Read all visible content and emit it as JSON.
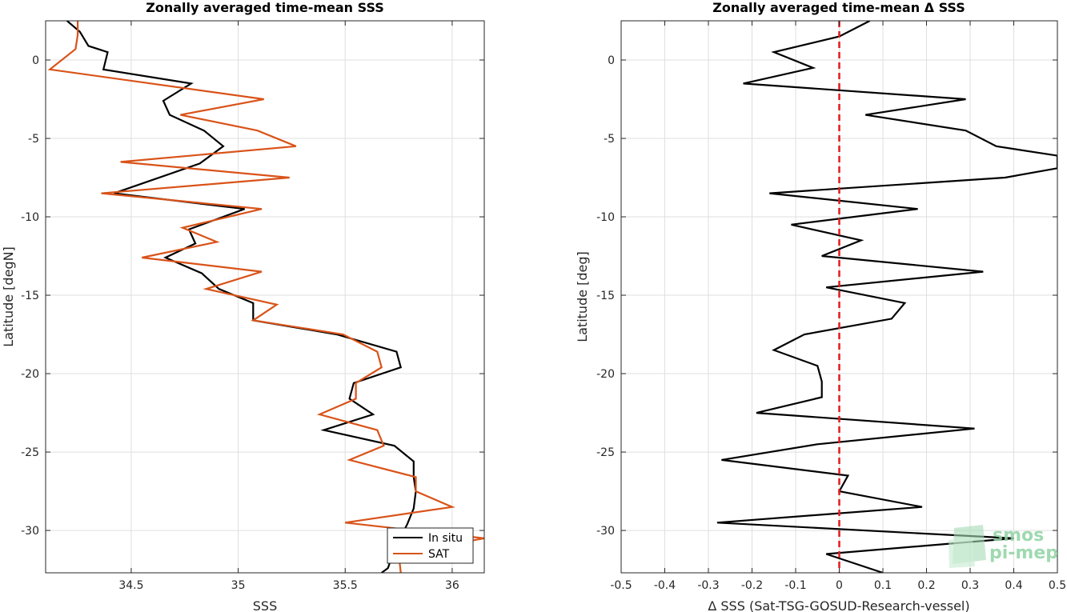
{
  "chart_data": [
    {
      "type": "line",
      "title": "Zonally averaged time-mean SSS",
      "xlabel": "SSS",
      "ylabel": "Latitude [degN]",
      "xlim": [
        34.1,
        36.15
      ],
      "ylim": [
        -32.7,
        2.5
      ],
      "xticks": [
        34.5,
        35,
        35.5,
        36
      ],
      "xtick_labels": [
        "34.5",
        "35",
        "35.5",
        "36"
      ],
      "yticks": [
        0,
        -5,
        -10,
        -15,
        -20,
        -25,
        -30
      ],
      "ytick_labels": [
        "0",
        "-5",
        "-10",
        "-15",
        "-20",
        "-25",
        "-30"
      ],
      "grid": true,
      "legend": "bottom-right",
      "series": [
        {
          "name": "In situ",
          "color": "#000000",
          "points": [
            [
              34.2,
              2.5
            ],
            [
              34.26,
              1.8
            ],
            [
              34.3,
              0.9
            ],
            [
              34.39,
              0.5
            ],
            [
              34.37,
              -0.6
            ],
            [
              34.78,
              -1.5
            ],
            [
              34.65,
              -2.6
            ],
            [
              34.68,
              -3.5
            ],
            [
              34.84,
              -4.5
            ],
            [
              34.93,
              -5.5
            ],
            [
              34.82,
              -6.6
            ],
            [
              34.42,
              -8.5
            ],
            [
              35.03,
              -9.5
            ],
            [
              34.77,
              -10.8
            ],
            [
              34.8,
              -11.7
            ],
            [
              34.66,
              -12.6
            ],
            [
              34.83,
              -13.6
            ],
            [
              34.91,
              -14.6
            ],
            [
              35.07,
              -15.5
            ],
            [
              35.07,
              -16.6
            ],
            [
              35.46,
              -17.5
            ],
            [
              35.74,
              -18.6
            ],
            [
              35.76,
              -19.6
            ],
            [
              35.54,
              -20.6
            ],
            [
              35.52,
              -21.6
            ],
            [
              35.63,
              -22.6
            ],
            [
              35.4,
              -23.6
            ],
            [
              35.73,
              -24.6
            ],
            [
              35.82,
              -25.6
            ],
            [
              35.82,
              -26.6
            ],
            [
              35.83,
              -27.5
            ],
            [
              35.82,
              -28.6
            ],
            [
              35.79,
              -29.6
            ],
            [
              35.73,
              -31.2
            ],
            [
              35.7,
              -32.4
            ],
            [
              35.67,
              -32.7
            ]
          ]
        },
        {
          "name": "SAT",
          "color": "#d95319",
          "points": [
            [
              34.25,
              2.5
            ],
            [
              34.25,
              1.6
            ],
            [
              34.24,
              0.7
            ],
            [
              34.12,
              -0.6
            ],
            [
              35.12,
              -2.5
            ],
            [
              34.73,
              -3.5
            ],
            [
              35.09,
              -4.5
            ],
            [
              35.27,
              -5.5
            ],
            [
              34.45,
              -6.5
            ],
            [
              35.24,
              -7.5
            ],
            [
              34.36,
              -8.5
            ],
            [
              35.11,
              -9.5
            ],
            [
              34.74,
              -10.7
            ],
            [
              34.9,
              -11.6
            ],
            [
              34.55,
              -12.6
            ],
            [
              35.11,
              -13.5
            ],
            [
              34.85,
              -14.6
            ],
            [
              35.18,
              -15.6
            ],
            [
              35.07,
              -16.6
            ],
            [
              35.49,
              -17.5
            ],
            [
              35.65,
              -18.6
            ],
            [
              35.67,
              -19.6
            ],
            [
              35.55,
              -20.6
            ],
            [
              35.55,
              -21.6
            ],
            [
              35.38,
              -22.6
            ],
            [
              35.65,
              -23.6
            ],
            [
              35.68,
              -24.6
            ],
            [
              35.52,
              -25.5
            ],
            [
              35.83,
              -26.6
            ],
            [
              35.83,
              -27.5
            ],
            [
              36.0,
              -28.5
            ],
            [
              35.5,
              -29.5
            ],
            [
              36.15,
              -30.5
            ],
            [
              35.75,
              -31.5
            ],
            [
              35.76,
              -32.7
            ]
          ]
        }
      ]
    },
    {
      "type": "line",
      "title": "Zonally averaged time-mean Δ SSS",
      "xlabel": "Δ SSS (Sat-TSG-GOSUD-Research-vessel)",
      "ylabel": "Latitude [deg]",
      "xlim": [
        -0.5,
        0.5
      ],
      "ylim": [
        -32.7,
        2.5
      ],
      "xticks": [
        -0.5,
        -0.4,
        -0.3,
        -0.2,
        -0.1,
        0,
        0.1,
        0.2,
        0.3,
        0.4,
        0.5
      ],
      "xtick_labels": [
        "-0.5",
        "-0.4",
        "-0.3",
        "-0.2",
        "-0.1",
        "0",
        "0.1",
        "0.2",
        "0.3",
        "0.4",
        "0.5"
      ],
      "yticks": [
        0,
        -5,
        -10,
        -15,
        -20,
        -25,
        -30
      ],
      "ytick_labels": [
        "0",
        "-5",
        "-10",
        "-15",
        "-20",
        "-25",
        "-30"
      ],
      "grid": true,
      "reference_line": {
        "x": 0,
        "color": "#e31a1c",
        "style": "dashed"
      },
      "series": [
        {
          "color": "#000000",
          "points": [
            [
              0.07,
              2.5
            ],
            [
              0.0,
              1.5
            ],
            [
              -0.15,
              0.5
            ],
            [
              -0.06,
              -0.5
            ],
            [
              -0.22,
              -1.5
            ],
            [
              0.29,
              -2.5
            ],
            [
              0.06,
              -3.5
            ],
            [
              0.29,
              -4.5
            ],
            [
              0.36,
              -5.5
            ],
            [
              0.5,
              -6.1
            ],
            [
              0.5,
              -6.9
            ],
            [
              0.38,
              -7.5
            ],
            [
              -0.16,
              -8.5
            ],
            [
              0.18,
              -9.5
            ],
            [
              -0.11,
              -10.5
            ],
            [
              0.05,
              -11.5
            ],
            [
              -0.04,
              -12.5
            ],
            [
              0.33,
              -13.5
            ],
            [
              -0.03,
              -14.5
            ],
            [
              0.15,
              -15.5
            ],
            [
              0.12,
              -16.5
            ],
            [
              -0.08,
              -17.5
            ],
            [
              -0.15,
              -18.5
            ],
            [
              -0.05,
              -19.5
            ],
            [
              -0.04,
              -20.5
            ],
            [
              -0.04,
              -21.5
            ],
            [
              -0.19,
              -22.5
            ],
            [
              0.31,
              -23.5
            ],
            [
              -0.05,
              -24.5
            ],
            [
              -0.27,
              -25.5
            ],
            [
              0.02,
              -26.5
            ],
            [
              0.0,
              -27.5
            ],
            [
              0.19,
              -28.5
            ],
            [
              -0.28,
              -29.5
            ],
            [
              0.4,
              -30.5
            ],
            [
              -0.03,
              -31.5
            ],
            [
              0.1,
              -32.7
            ]
          ]
        }
      ]
    }
  ],
  "watermark": {
    "line1": "smos",
    "line2": "pi-mep",
    "color": "#8fd3a3"
  }
}
